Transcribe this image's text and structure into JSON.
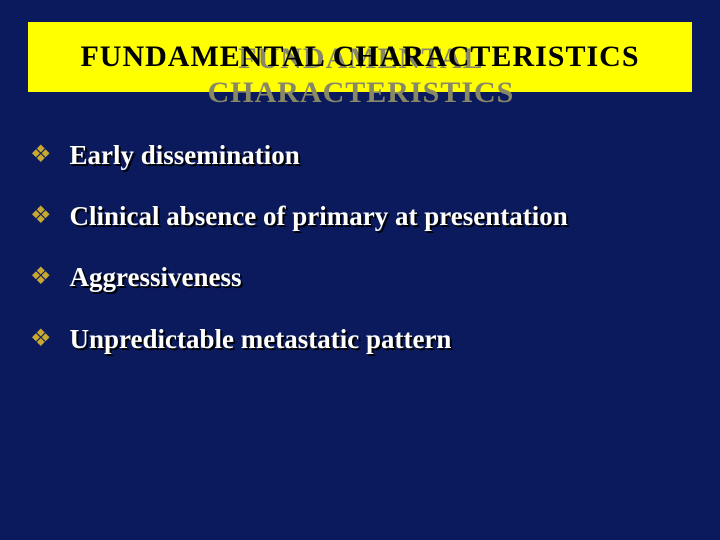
{
  "slide": {
    "title": "FUNDAMENTAL   CHARACTERISTICS",
    "bullets": [
      "Early  dissemination",
      "Clinical absence  of primary  at  presentation",
      "Aggressiveness",
      "Unpredictable  metastatic  pattern"
    ]
  },
  "style": {
    "background_color": "#0a1a5c",
    "title_bg_color": "#ffff00",
    "title_text_color": "#000000",
    "title_shadow_color": "#888866",
    "title_fontsize": 30,
    "bullet_marker_color": "#c9a832",
    "bullet_text_color": "#ffffff",
    "bullet_text_shadow": "#000000",
    "bullet_fontsize": 27,
    "bullet_marker": "❖"
  }
}
